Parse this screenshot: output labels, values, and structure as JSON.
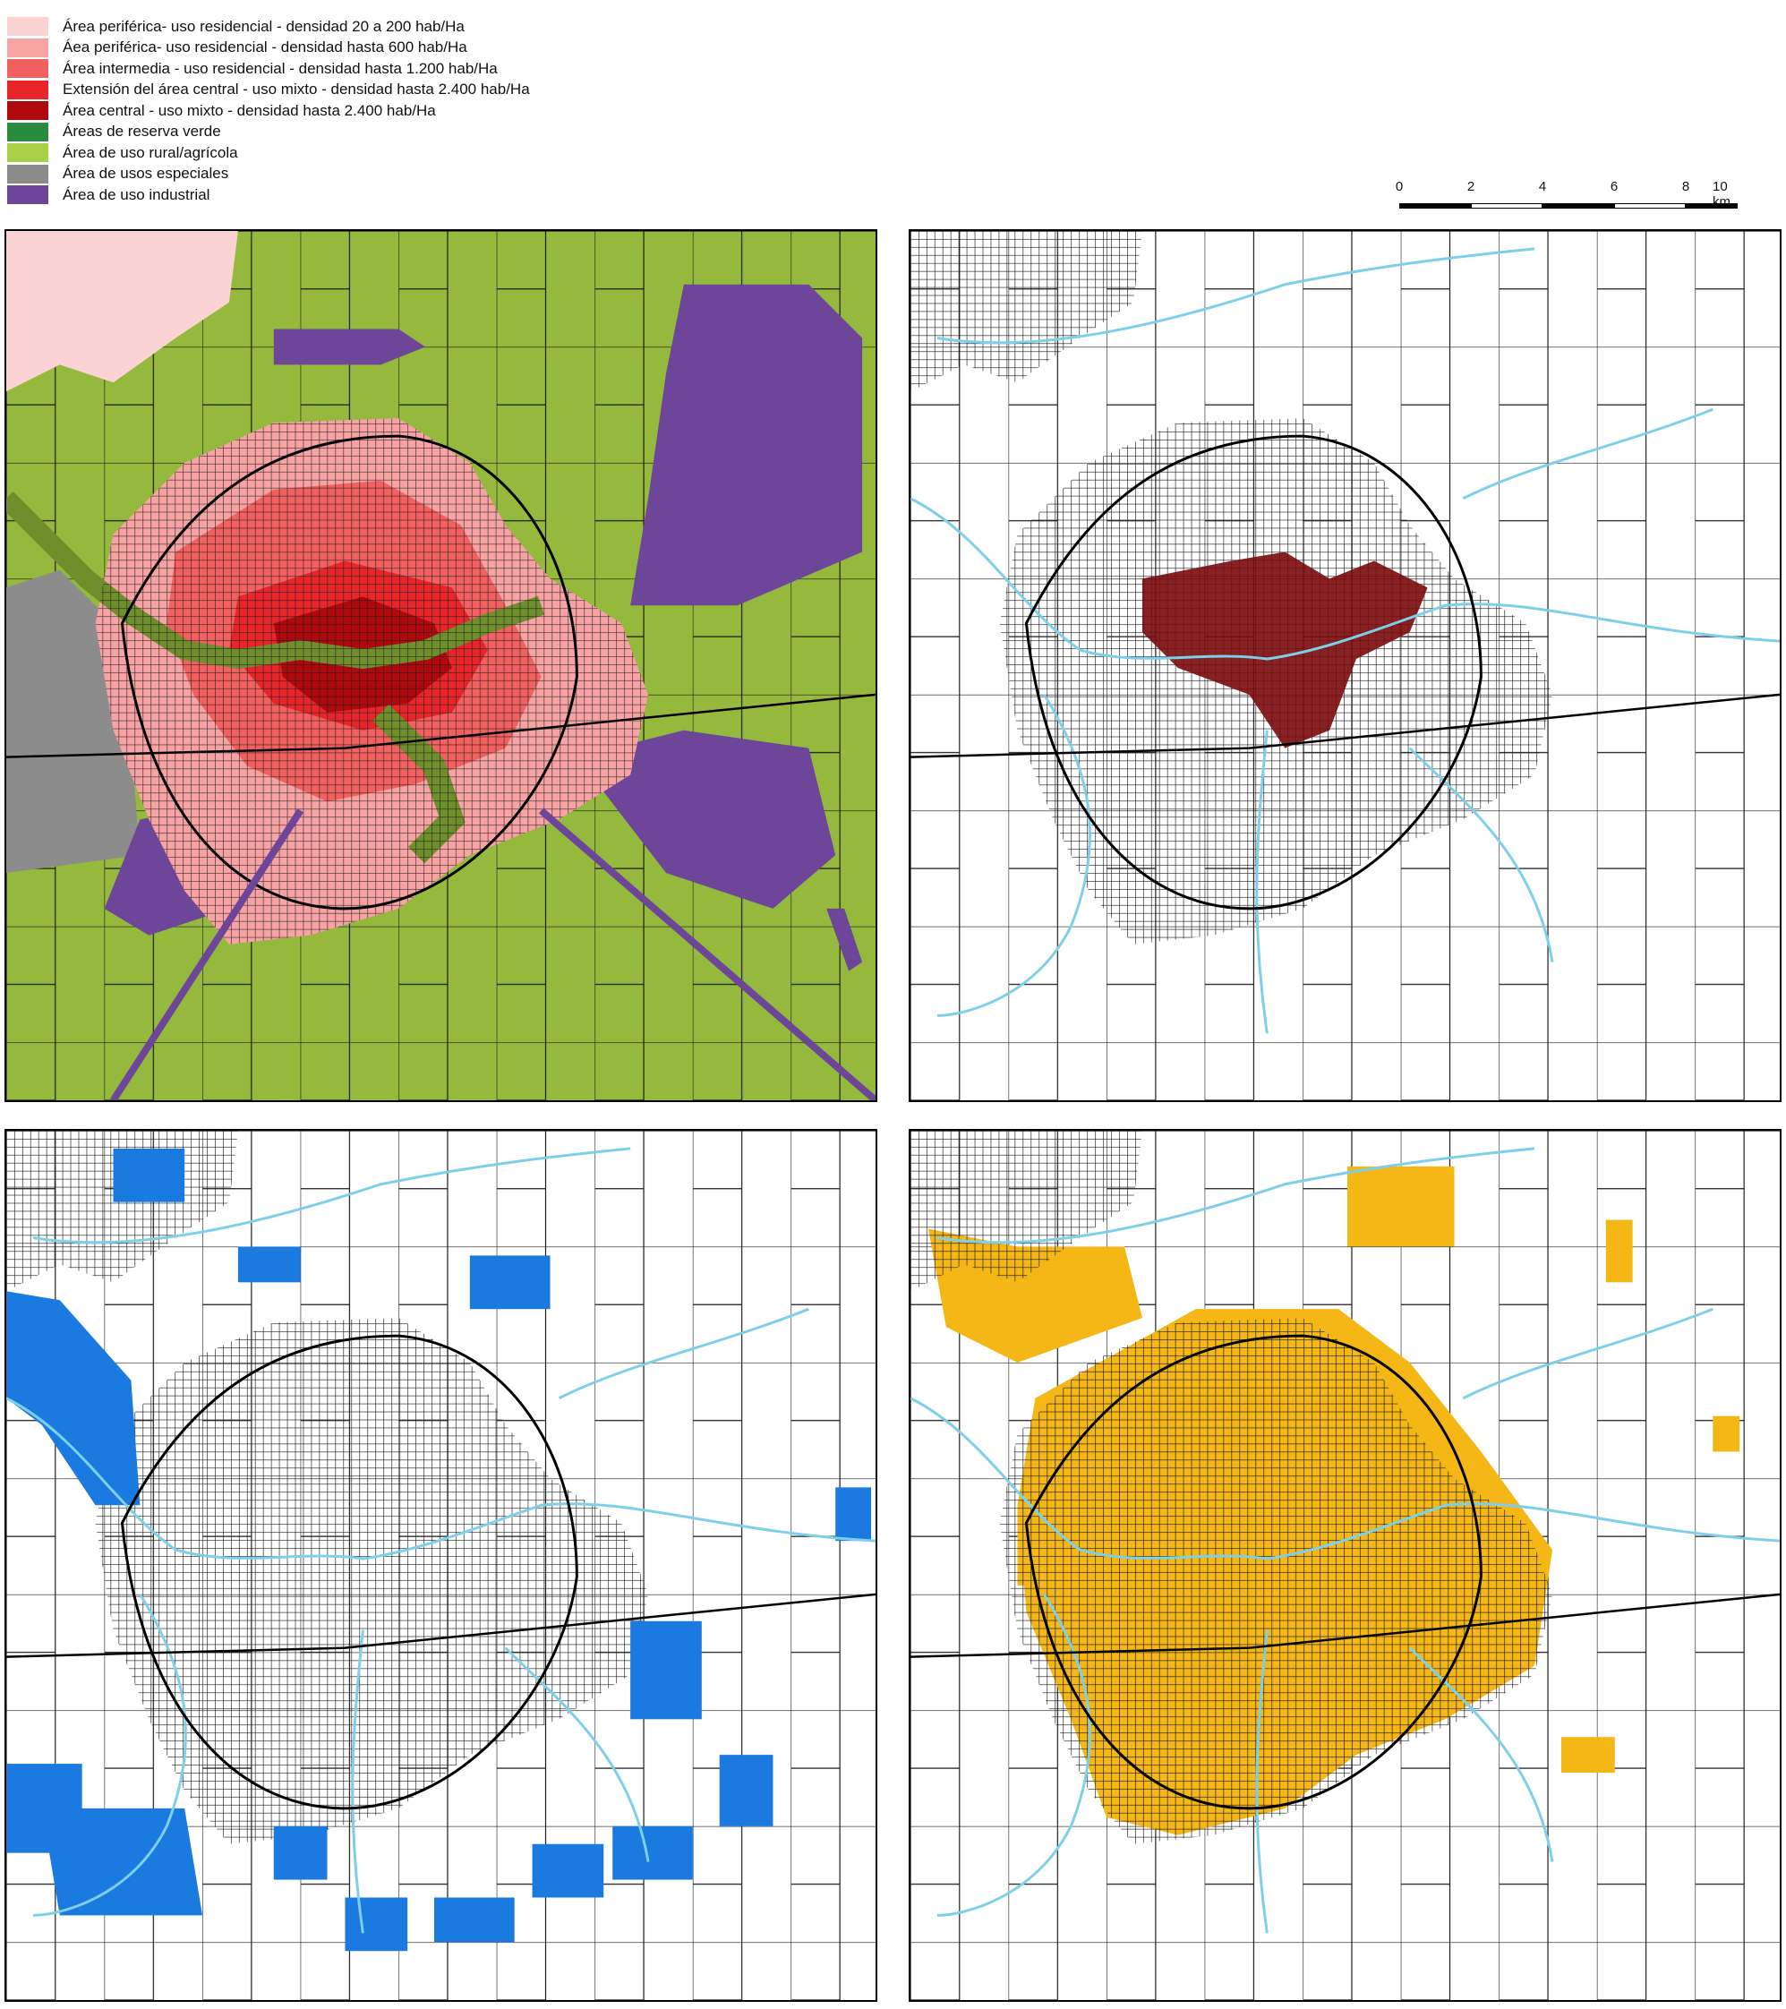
{
  "legend": {
    "items": [
      {
        "label": "Área periférica- uso residencial - densidad 20 a 200 hab/Ha",
        "color": "#fbd3d3"
      },
      {
        "label": "Áea periférica- uso residencial - densidad hasta 600 hab/Ha",
        "color": "#f7a3a3"
      },
      {
        "label": "Área intermedia - uso residencial - densidad hasta 1.200 hab/Ha",
        "color": "#f26060"
      },
      {
        "label": "Extensión del área central - uso mixto - densidad hasta 2.400 hab/Ha",
        "color": "#e8262a"
      },
      {
        "label": "Área central - uso mixto - densidad hasta 2.400 hab/Ha",
        "color": "#b0090d"
      },
      {
        "label": "Áreas de reserva verde",
        "color": "#2a8a3e"
      },
      {
        "label": "Área de uso rural/agrícola",
        "color": "#a9cf48"
      },
      {
        "label": "Área de usos especiales",
        "color": "#8c8c8c"
      },
      {
        "label": "Área de uso industrial",
        "color": "#6e4699"
      }
    ]
  },
  "scalebar": {
    "ticks": [
      "0",
      "2",
      "4",
      "6",
      "8",
      "10 km"
    ]
  },
  "colors": {
    "street_grid": "#1a1a1a",
    "rivers": "#7ed0ea",
    "central_fill": "#7a0a0c",
    "blue_fill": "#1a7ae0",
    "yellow_fill": "#f5b716",
    "rural_green": "#a9cf48",
    "reserve_green": "#6e8f2b",
    "industrial_purple": "#6e4699",
    "special_gray": "#8c8c8c"
  },
  "panels": [
    {
      "name": "land-use-zoning"
    },
    {
      "name": "central-area-highlight"
    },
    {
      "name": "blue-parcels"
    },
    {
      "name": "yellow-parcels"
    }
  ]
}
